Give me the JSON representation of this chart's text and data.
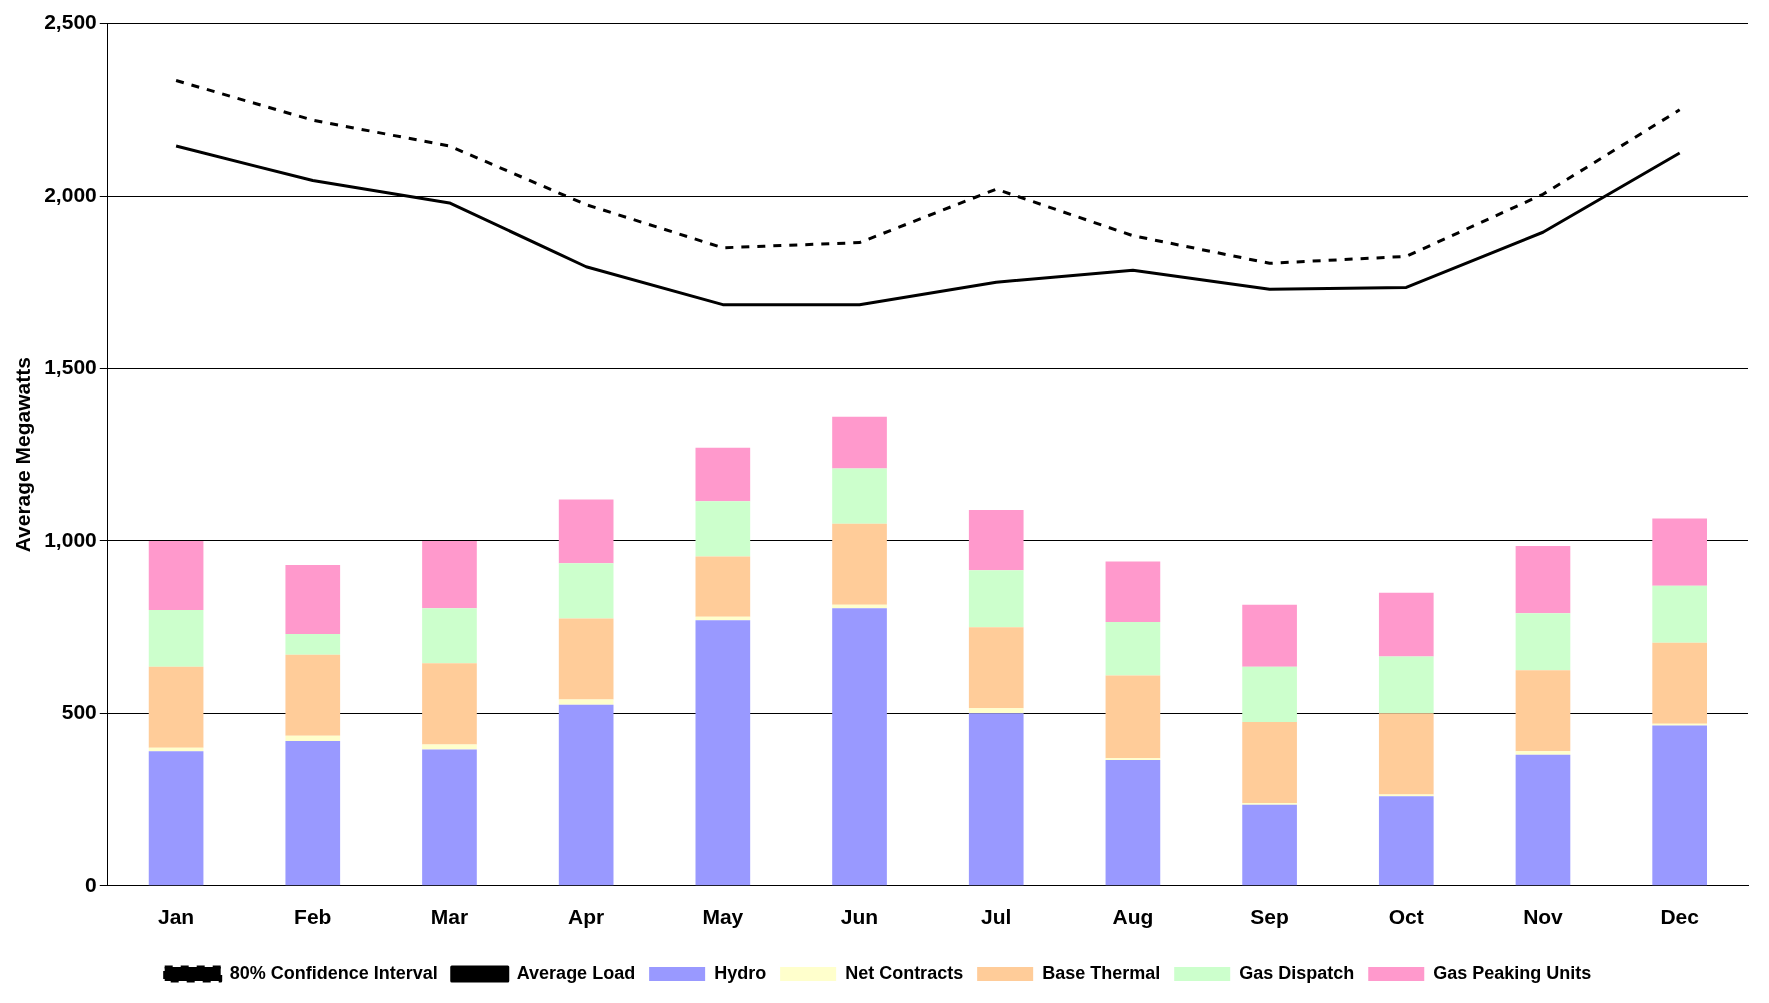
{
  "chart_data": {
    "type": "bar",
    "ylabel": "Average Megawatts",
    "categories": [
      "Jan",
      "Feb",
      "Mar",
      "Apr",
      "May",
      "Jun",
      "Jul",
      "Aug",
      "Sep",
      "Oct",
      "Nov",
      "Dec"
    ],
    "stacked": true,
    "ylim": [
      0,
      2500
    ],
    "yticks": [
      0,
      {
        "value": 500,
        "label": "500"
      },
      {
        "value": 1000,
        "label": "1,000"
      },
      {
        "value": 1500,
        "label": "1,500"
      },
      {
        "value": 2000,
        "label": "2,000"
      },
      {
        "value": 2500,
        "label": "2,500"
      }
    ],
    "grid": "y",
    "legend": "bottom",
    "series": [
      {
        "name": "Hydro",
        "color": "#9999ff",
        "values": [
          390,
          420,
          395,
          525,
          770,
          805,
          500,
          365,
          235,
          260,
          380,
          465
        ]
      },
      {
        "name": "Net Contracts",
        "color": "#ffffcc",
        "values": [
          10,
          15,
          15,
          15,
          10,
          10,
          15,
          5,
          5,
          5,
          10,
          5
        ]
      },
      {
        "name": "Base Thermal",
        "color": "#ffcc99",
        "values": [
          235,
          235,
          235,
          235,
          175,
          235,
          235,
          240,
          235,
          235,
          235,
          235
        ]
      },
      {
        "name": "Gas Dispatch",
        "color": "#ccffcc",
        "values": [
          165,
          60,
          160,
          160,
          160,
          160,
          165,
          155,
          160,
          165,
          165,
          165
        ]
      },
      {
        "name": "Gas Peaking Units",
        "color": "#ff99cc",
        "values": [
          200,
          200,
          195,
          185,
          155,
          150,
          175,
          175,
          180,
          185,
          195,
          195
        ]
      },
      {
        "name": "80% Confidence Interval",
        "type": "line",
        "color": "#000000",
        "line_style": "dashed",
        "marker": "none",
        "values": [
          2335,
          2220,
          2145,
          1975,
          1850,
          1865,
          2020,
          1885,
          1805,
          1825,
          2005,
          2250
        ]
      },
      {
        "name": "Average Load",
        "type": "line",
        "color": "#000000",
        "line_style": "solid",
        "marker": "none",
        "values": [
          2145,
          2045,
          1980,
          1795,
          1685,
          1685,
          1750,
          1785,
          1730,
          1735,
          1895,
          2125
        ]
      }
    ]
  }
}
